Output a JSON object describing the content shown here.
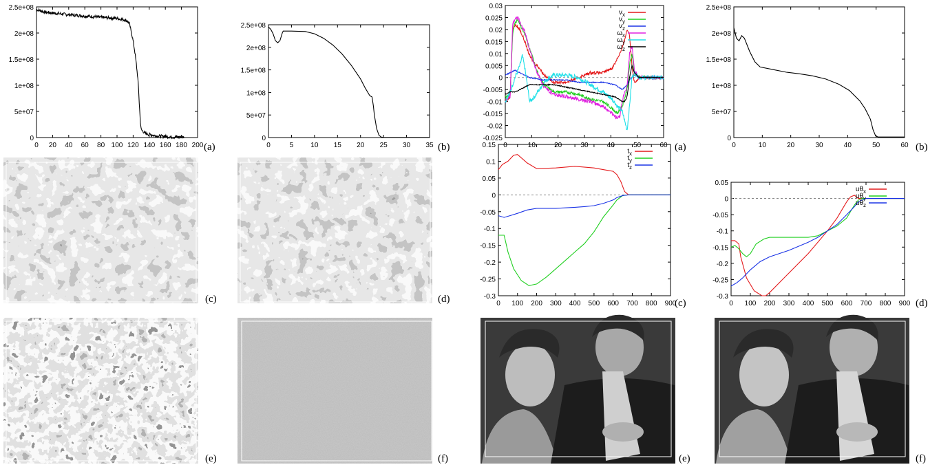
{
  "captions": {
    "left_a": "(a)",
    "left_b": "(b)",
    "left_c": "(c)",
    "left_d": "(d)",
    "left_e": "(e)",
    "left_f": "(f)",
    "right_a": "(a)",
    "right_b": "(b)",
    "right_c": "(c)",
    "right_d": "(d)",
    "right_e": "(e)",
    "right_f": "(f)"
  },
  "colors": {
    "red": "#e41a1c",
    "green": "#1fcf1f",
    "blue": "#1a33e6",
    "magenta": "#e020e0",
    "cyan": "#20e0e8",
    "black": "#000000"
  },
  "images": [
    {
      "id": "left_c",
      "content": "lace-texture"
    },
    {
      "id": "left_d",
      "content": "lace-texture"
    },
    {
      "id": "left_e",
      "content": "lace-texture-high-contrast"
    },
    {
      "id": "left_f",
      "content": "gray-noise"
    },
    {
      "id": "right_e",
      "content": "portrait-photo"
    },
    {
      "id": "right_f",
      "content": "portrait-photo"
    }
  ],
  "chart_data": [
    {
      "id": "left_a",
      "type": "line",
      "xlim": [
        0,
        200
      ],
      "ylim": [
        0,
        250000000
      ],
      "xticks": [
        "0",
        "20",
        "40",
        "60",
        "80",
        "100",
        "120",
        "140",
        "160",
        "180",
        "200"
      ],
      "yticks": [
        "0",
        "5e+07",
        "1e+08",
        "1.5e+08",
        "2e+08",
        "2.5e+08"
      ],
      "series": [
        {
          "color": "black",
          "noise": 0.012,
          "x": [
            0,
            10,
            40,
            80,
            100,
            110,
            115,
            118,
            120,
            122,
            124,
            126,
            127,
            128,
            129,
            130,
            135,
            140,
            150,
            160,
            170,
            183
          ],
          "y": [
            245000000,
            240000000,
            235000000,
            230000000,
            228000000,
            225000000,
            220000000,
            200000000,
            185000000,
            165000000,
            140000000,
            110000000,
            85000000,
            55000000,
            30000000,
            15000000,
            8000000,
            6000000,
            3000000,
            2000000,
            1000000,
            1000000
          ]
        }
      ]
    },
    {
      "id": "left_b",
      "type": "line",
      "xlim": [
        0,
        35
      ],
      "ylim": [
        0,
        250000000
      ],
      "xticks": [
        "0",
        "5",
        "10",
        "15",
        "20",
        "25",
        "30",
        "35"
      ],
      "yticks": [
        "0",
        "5e+07",
        "1e+08",
        "1.5e+08",
        "2e+08",
        "2.5e+08"
      ],
      "series": [
        {
          "color": "black",
          "noise": 0,
          "x": [
            0,
            0.5,
            1,
            1.5,
            2,
            2.5,
            3,
            3.2,
            5,
            8,
            10,
            12,
            14,
            16,
            18,
            20,
            21,
            22,
            22.5,
            22.8,
            23,
            23.5,
            24,
            24.5,
            25,
            30,
            35
          ],
          "y": [
            245000000,
            240000000,
            230000000,
            215000000,
            210000000,
            215000000,
            232000000,
            236000000,
            236000000,
            235000000,
            230000000,
            220000000,
            205000000,
            185000000,
            160000000,
            130000000,
            110000000,
            93000000,
            90000000,
            70000000,
            50000000,
            20000000,
            5000000,
            1000000,
            500000,
            300000,
            300000
          ]
        }
      ]
    },
    {
      "id": "right_a",
      "type": "line",
      "xlim": [
        0,
        65
      ],
      "ylim": [
        -0.025,
        0.03
      ],
      "xticks": [
        "0",
        "10",
        "20",
        "30",
        "40",
        "50",
        "60"
      ],
      "yticks": [
        "-0.025",
        "-0.02",
        "-0.015",
        "-0.01",
        "-0.005",
        "0",
        "0.005",
        "0.01",
        "0.015",
        "0.02",
        "0.025",
        "0.03"
      ],
      "zero_line": true,
      "legend": [
        "v_x",
        "v_y",
        "v_z",
        "ω_x",
        "ω_y",
        "ω_z"
      ],
      "series": [
        {
          "name": "v_x",
          "color": "red",
          "noise": 0.0006,
          "x": [
            0,
            2,
            3,
            4,
            6,
            8,
            10,
            12,
            14,
            16,
            20,
            25,
            30,
            35,
            40,
            44,
            46,
            48,
            49,
            50,
            51,
            52,
            53,
            55,
            65
          ],
          "y": [
            -0.01,
            -0.008,
            0.02,
            0.022,
            0.02,
            0.015,
            0.009,
            0.006,
            0.004,
            0.001,
            -0.002,
            -0.002,
            0.0,
            0.002,
            0.002,
            0.004,
            0.008,
            0.012,
            0.016,
            0.02,
            0.018,
            0.005,
            -0.002,
            0.0,
            0.0
          ]
        },
        {
          "name": "v_y",
          "color": "green",
          "noise": 0.0006,
          "x": [
            0,
            2,
            3,
            4,
            5,
            6,
            8,
            10,
            12,
            14,
            16,
            20,
            25,
            30,
            35,
            40,
            44,
            46,
            48,
            50,
            51,
            52,
            53,
            55,
            65
          ],
          "y": [
            -0.008,
            -0.007,
            0.018,
            0.023,
            0.024,
            0.022,
            0.018,
            0.012,
            0.006,
            0.0,
            -0.003,
            -0.006,
            -0.006,
            -0.007,
            -0.009,
            -0.01,
            -0.013,
            -0.015,
            -0.012,
            -0.005,
            0.005,
            0.01,
            0.002,
            0.0,
            0.0
          ]
        },
        {
          "name": "v_z",
          "color": "blue",
          "noise": 0.0002,
          "x": [
            0,
            2,
            4,
            6,
            8,
            10,
            15,
            20,
            25,
            30,
            35,
            40,
            45,
            48,
            50,
            51,
            52,
            53,
            55,
            65
          ],
          "y": [
            0.001,
            0.002,
            0.003,
            0.002,
            0.001,
            0.0,
            -0.001,
            -0.001,
            -0.001,
            -0.002,
            -0.002,
            -0.002,
            -0.003,
            -0.005,
            -0.003,
            -0.001,
            0.0,
            0.001,
            0.0,
            0.0
          ]
        },
        {
          "name": "ω_x",
          "color": "magenta",
          "noise": 0.0008,
          "x": [
            0,
            2,
            3,
            4,
            5,
            6,
            8,
            10,
            12,
            14,
            16,
            20,
            25,
            30,
            35,
            40,
            44,
            46,
            47,
            48,
            49,
            50,
            51,
            52,
            53,
            55,
            65
          ],
          "y": [
            -0.01,
            -0.008,
            0.022,
            0.025,
            0.025,
            0.023,
            0.019,
            0.012,
            0.005,
            0.0,
            -0.004,
            -0.007,
            -0.008,
            -0.009,
            -0.01,
            -0.012,
            -0.015,
            -0.017,
            -0.016,
            -0.01,
            -0.006,
            -0.004,
            0.01,
            0.013,
            0.003,
            0.0,
            0.0
          ]
        },
        {
          "name": "ω_y",
          "color": "cyan",
          "noise": 0.0009,
          "x": [
            0,
            2,
            4,
            6,
            7,
            8,
            10,
            12,
            14,
            16,
            18,
            20,
            25,
            30,
            35,
            40,
            44,
            46,
            48,
            49,
            50,
            51,
            52,
            53,
            55,
            65
          ],
          "y": [
            -0.01,
            -0.006,
            0.0,
            0.005,
            0.009,
            0.004,
            -0.01,
            -0.008,
            -0.005,
            -0.002,
            0.0,
            0.001,
            0.001,
            0.0,
            -0.003,
            -0.006,
            -0.009,
            -0.012,
            -0.014,
            -0.018,
            -0.022,
            -0.012,
            0.0,
            0.002,
            0.0,
            0.0
          ]
        },
        {
          "name": "ω_z",
          "color": "black",
          "noise": 0.0002,
          "x": [
            0,
            2,
            4,
            6,
            8,
            10,
            15,
            20,
            25,
            30,
            35,
            40,
            45,
            48,
            49,
            50,
            51,
            52,
            53,
            55,
            65
          ],
          "y": [
            -0.007,
            -0.006,
            -0.006,
            -0.005,
            -0.004,
            -0.003,
            -0.003,
            -0.003,
            -0.004,
            -0.005,
            -0.006,
            -0.007,
            -0.008,
            -0.01,
            -0.01,
            -0.008,
            0.0,
            0.005,
            0.002,
            0.0,
            0.0
          ]
        }
      ]
    },
    {
      "id": "right_b",
      "type": "line",
      "xlim": [
        0,
        65
      ],
      "ylim": [
        0,
        250000000
      ],
      "xticks": [
        "0",
        "10",
        "20",
        "30",
        "40",
        "50",
        "60"
      ],
      "yticks": [
        "0",
        "5e+07",
        "1e+08",
        "1.5e+08",
        "2e+08",
        "2.5e+08"
      ],
      "series": [
        {
          "color": "black",
          "noise": 0,
          "x": [
            0,
            0.5,
            1,
            2,
            3,
            4,
            6,
            8,
            10,
            15,
            20,
            25,
            30,
            35,
            40,
            44,
            48,
            50,
            52,
            53,
            54,
            55,
            60,
            65
          ],
          "y": [
            210000000,
            200000000,
            190000000,
            185000000,
            195000000,
            190000000,
            165000000,
            145000000,
            135000000,
            130000000,
            125000000,
            122000000,
            118000000,
            112000000,
            102000000,
            90000000,
            70000000,
            55000000,
            35000000,
            15000000,
            3000000,
            1000000,
            1000000,
            1000000
          ]
        }
      ]
    },
    {
      "id": "right_c",
      "type": "line",
      "xlim": [
        0,
        900
      ],
      "ylim": [
        -0.3,
        0.15
      ],
      "xticks": [
        "0",
        "100",
        "200",
        "300",
        "400",
        "500",
        "600",
        "700",
        "800",
        "900"
      ],
      "yticks": [
        "-0.3",
        "-0.25",
        "-0.2",
        "-0.15",
        "-0.1",
        "-0.05",
        "0",
        "0.05",
        "0.1",
        "0.15"
      ],
      "zero_line": true,
      "legend": [
        "t_x",
        "t_y",
        "t_z"
      ],
      "series": [
        {
          "name": "t_x",
          "color": "red",
          "noise": 0,
          "x": [
            0,
            20,
            50,
            80,
            100,
            150,
            200,
            300,
            400,
            500,
            550,
            600,
            620,
            640,
            660,
            680,
            700,
            900
          ],
          "y": [
            0.075,
            0.09,
            0.1,
            0.118,
            0.12,
            0.095,
            0.078,
            0.08,
            0.085,
            0.08,
            0.075,
            0.07,
            0.06,
            0.04,
            0.01,
            0.0,
            0.0,
            0.0
          ]
        },
        {
          "name": "t_y",
          "color": "green",
          "noise": 0,
          "x": [
            0,
            20,
            30,
            50,
            80,
            120,
            160,
            200,
            250,
            300,
            350,
            400,
            450,
            500,
            550,
            600,
            620,
            650,
            680,
            700,
            900
          ],
          "y": [
            -0.12,
            -0.12,
            -0.12,
            -0.17,
            -0.22,
            -0.255,
            -0.27,
            -0.265,
            -0.245,
            -0.22,
            -0.195,
            -0.17,
            -0.145,
            -0.11,
            -0.065,
            -0.03,
            -0.015,
            -0.002,
            0.0,
            0.0,
            0.0
          ]
        },
        {
          "name": "t_z",
          "color": "blue",
          "noise": 0,
          "x": [
            0,
            30,
            60,
            100,
            150,
            200,
            300,
            400,
            450,
            500,
            550,
            600,
            620,
            650,
            680,
            900
          ],
          "y": [
            -0.062,
            -0.067,
            -0.062,
            -0.055,
            -0.045,
            -0.04,
            -0.04,
            -0.037,
            -0.035,
            -0.032,
            -0.025,
            -0.015,
            -0.008,
            -0.002,
            0.0,
            0.0
          ]
        }
      ]
    },
    {
      "id": "right_d",
      "type": "line",
      "xlim": [
        0,
        900
      ],
      "ylim": [
        -0.3,
        0.05
      ],
      "xticks": [
        "0",
        "100",
        "200",
        "300",
        "400",
        "500",
        "600",
        "700",
        "800",
        "900"
      ],
      "yticks": [
        "-0.3",
        "-0.25",
        "-0.2",
        "-0.15",
        "-0.1",
        "-0.05",
        "0",
        "0.05"
      ],
      "zero_line": true,
      "legend": [
        "uθ_x",
        "uθ_y",
        "uθ_z"
      ],
      "series": [
        {
          "name": "uθ_x",
          "color": "red",
          "noise": 0,
          "x": [
            0,
            20,
            40,
            50,
            80,
            120,
            160,
            180,
            200,
            250,
            300,
            400,
            500,
            550,
            580,
            600,
            620,
            640,
            660,
            700,
            900
          ],
          "y": [
            -0.13,
            -0.13,
            -0.14,
            -0.18,
            -0.245,
            -0.285,
            -0.3,
            -0.3,
            -0.29,
            -0.26,
            -0.23,
            -0.17,
            -0.1,
            -0.06,
            -0.03,
            -0.01,
            0.005,
            0.01,
            0.0,
            0.0,
            0.0
          ]
        },
        {
          "name": "uθ_y",
          "color": "green",
          "noise": 0,
          "x": [
            0,
            20,
            40,
            60,
            80,
            100,
            130,
            170,
            200,
            300,
            400,
            450,
            500,
            550,
            600,
            620,
            640,
            660,
            680,
            700,
            900
          ],
          "y": [
            -0.15,
            -0.145,
            -0.155,
            -0.17,
            -0.18,
            -0.17,
            -0.14,
            -0.125,
            -0.12,
            -0.12,
            -0.12,
            -0.115,
            -0.1,
            -0.085,
            -0.06,
            -0.04,
            -0.02,
            -0.005,
            0.0,
            0.0,
            0.0
          ]
        },
        {
          "name": "uθ_z",
          "color": "blue",
          "noise": 0,
          "x": [
            0,
            30,
            60,
            100,
            150,
            200,
            300,
            400,
            450,
            500,
            550,
            600,
            640,
            660,
            700,
            900
          ],
          "y": [
            -0.27,
            -0.26,
            -0.245,
            -0.22,
            -0.195,
            -0.18,
            -0.16,
            -0.135,
            -0.12,
            -0.1,
            -0.08,
            -0.05,
            -0.025,
            -0.01,
            0.0,
            0.0
          ]
        }
      ]
    }
  ]
}
